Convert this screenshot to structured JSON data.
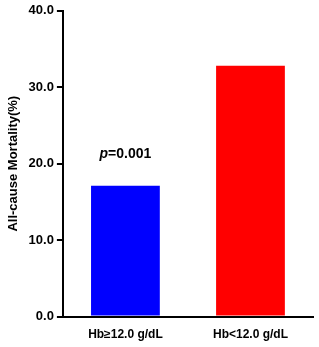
{
  "chart_data": {
    "type": "bar",
    "y_label": "All-cause Mortality(%)",
    "categories": [
      "Hb≥12.0 g/dL",
      "Hb<12.0 g/dL"
    ],
    "values": [
      17.1,
      32.8
    ],
    "colors": [
      "#0000ff",
      "#ff0000"
    ],
    "ylim": [
      0,
      40
    ],
    "yticks": [
      {
        "value": 0,
        "label": "0.0"
      },
      {
        "value": 10,
        "label": "10.0"
      },
      {
        "value": 20,
        "label": "20.0"
      },
      {
        "value": 30,
        "label": "30.0"
      },
      {
        "value": 40,
        "label": "40.0"
      }
    ],
    "annotation": "p=0.001",
    "grid": false
  }
}
